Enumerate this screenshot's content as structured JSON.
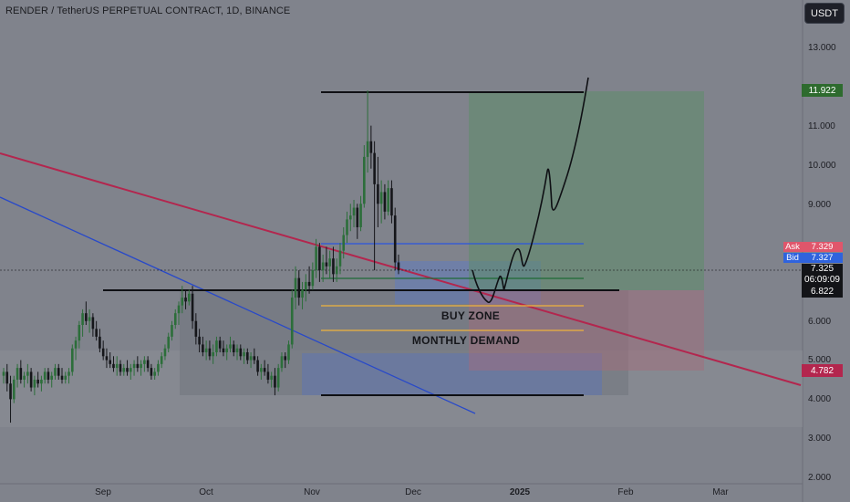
{
  "header": {
    "title": "RENDER / TetherUS PERPETUAL CONTRACT, 1D, BINANCE",
    "currency_button": "USDT"
  },
  "chart_data": {
    "type": "candlestick",
    "symbol": "RENDER / TetherUS PERPETUAL CONTRACT",
    "interval": "1D",
    "exchange": "BINANCE",
    "y_axis": {
      "ticks": [
        "13.000",
        "11.000",
        "10.000",
        "9.000",
        "6.000",
        "5.000",
        "4.000",
        "3.000",
        "2.000"
      ],
      "range": [
        2.0,
        13.5
      ]
    },
    "x_axis": {
      "ticks": [
        {
          "label": "Sep",
          "bold": false
        },
        {
          "label": "Oct",
          "bold": false
        },
        {
          "label": "Nov",
          "bold": false
        },
        {
          "label": "Dec",
          "bold": false
        },
        {
          "label": "2025",
          "bold": true
        },
        {
          "label": "Feb",
          "bold": false
        },
        {
          "label": "Mar",
          "bold": false
        }
      ]
    },
    "price_labels": {
      "target": {
        "value": "11.922",
        "color": "#2e6b2e"
      },
      "ask": {
        "label": "Ask",
        "value": "7.329",
        "color": "#e0566b"
      },
      "bid": {
        "label": "Bid",
        "value": "7.327",
        "color": "#2f63dd"
      },
      "last": {
        "value": "7.325",
        "countdown": "06:09:09"
      },
      "entry": {
        "value": "6.822"
      },
      "stop": {
        "value": "4.782",
        "color": "#b3264e"
      }
    },
    "annotations": [
      "BUY ZONE",
      "MONTHLY DEMAND"
    ],
    "series": [
      {
        "name": "",
        "points": [
          [
            4.6,
            4.8,
            4.4,
            4.7
          ],
          [
            4.7,
            4.9,
            4.2,
            4.4
          ],
          [
            4.4,
            4.6,
            3.4,
            4.0
          ],
          [
            4.0,
            4.6,
            3.9,
            4.5
          ],
          [
            4.5,
            4.9,
            4.3,
            4.8
          ],
          [
            4.8,
            5.0,
            4.4,
            4.5
          ],
          [
            4.5,
            4.7,
            4.3,
            4.6
          ],
          [
            4.6,
            4.9,
            4.4,
            4.7
          ],
          [
            4.7,
            4.8,
            4.2,
            4.3
          ],
          [
            4.3,
            4.6,
            4.1,
            4.5
          ],
          [
            4.5,
            4.7,
            4.3,
            4.4
          ],
          [
            4.4,
            4.6,
            4.2,
            4.5
          ],
          [
            4.5,
            4.8,
            4.4,
            4.7
          ],
          [
            4.7,
            4.8,
            4.4,
            4.5
          ],
          [
            4.5,
            4.7,
            4.3,
            4.6
          ],
          [
            4.6,
            4.9,
            4.5,
            4.8
          ],
          [
            4.8,
            4.9,
            4.5,
            4.6
          ],
          [
            4.6,
            4.8,
            4.4,
            4.5
          ],
          [
            4.5,
            4.7,
            4.4,
            4.6
          ],
          [
            4.6,
            4.8,
            4.4,
            4.7
          ],
          [
            4.7,
            5.4,
            4.6,
            5.3
          ],
          [
            5.3,
            5.6,
            5.0,
            5.5
          ],
          [
            5.5,
            6.0,
            5.3,
            5.9
          ],
          [
            5.9,
            6.3,
            5.6,
            6.2
          ],
          [
            6.2,
            6.5,
            5.9,
            6.0
          ],
          [
            6.0,
            6.3,
            5.7,
            6.1
          ],
          [
            6.1,
            6.2,
            5.6,
            5.8
          ],
          [
            5.8,
            6.0,
            5.5,
            5.6
          ],
          [
            5.6,
            5.8,
            5.2,
            5.3
          ],
          [
            5.3,
            5.5,
            5.0,
            5.1
          ],
          [
            5.1,
            5.3,
            4.8,
            5.0
          ],
          [
            5.0,
            5.2,
            4.8,
            4.9
          ],
          [
            4.9,
            5.1,
            4.7,
            4.8
          ],
          [
            4.8,
            5.1,
            4.6,
            4.9
          ],
          [
            4.9,
            5.0,
            4.6,
            4.7
          ],
          [
            4.7,
            4.9,
            4.6,
            4.8
          ],
          [
            4.8,
            5.0,
            4.6,
            4.7
          ],
          [
            4.7,
            4.9,
            4.5,
            4.8
          ],
          [
            4.8,
            5.0,
            4.6,
            4.9
          ],
          [
            4.9,
            5.1,
            4.7,
            4.8
          ],
          [
            4.8,
            5.0,
            4.6,
            4.9
          ],
          [
            4.9,
            5.1,
            4.7,
            5.0
          ],
          [
            5.0,
            5.1,
            4.7,
            4.8
          ],
          [
            4.8,
            4.9,
            4.5,
            4.6
          ],
          [
            4.6,
            4.8,
            4.5,
            4.7
          ],
          [
            4.7,
            5.0,
            4.6,
            4.9
          ],
          [
            4.9,
            5.2,
            4.8,
            5.1
          ],
          [
            5.1,
            5.4,
            5.0,
            5.3
          ],
          [
            5.3,
            5.7,
            5.2,
            5.6
          ],
          [
            5.6,
            6.0,
            5.5,
            5.9
          ],
          [
            5.9,
            6.3,
            5.8,
            6.2
          ],
          [
            6.2,
            6.5,
            5.9,
            6.4
          ],
          [
            6.4,
            6.9,
            6.2,
            6.6
          ],
          [
            6.6,
            6.8,
            6.3,
            6.5
          ],
          [
            6.5,
            6.8,
            6.4,
            6.7
          ],
          [
            6.7,
            6.9,
            5.8,
            6.0
          ],
          [
            6.0,
            6.2,
            5.4,
            5.6
          ],
          [
            5.6,
            5.8,
            5.2,
            5.4
          ],
          [
            5.4,
            5.6,
            5.1,
            5.2
          ],
          [
            5.2,
            5.5,
            5.0,
            5.3
          ],
          [
            5.3,
            5.5,
            5.0,
            5.1
          ],
          [
            5.1,
            5.4,
            4.9,
            5.2
          ],
          [
            5.2,
            5.6,
            5.1,
            5.5
          ],
          [
            5.5,
            5.6,
            5.2,
            5.3
          ],
          [
            5.3,
            5.5,
            5.1,
            5.2
          ],
          [
            5.2,
            5.4,
            5.0,
            5.3
          ],
          [
            5.3,
            5.6,
            5.2,
            5.4
          ],
          [
            5.4,
            5.5,
            5.1,
            5.2
          ],
          [
            5.2,
            5.4,
            5.0,
            5.3
          ],
          [
            5.3,
            5.4,
            5.0,
            5.1
          ],
          [
            5.1,
            5.3,
            4.9,
            5.2
          ],
          [
            5.2,
            5.3,
            4.9,
            5.0
          ],
          [
            5.0,
            5.2,
            4.8,
            5.1
          ],
          [
            5.1,
            5.3,
            4.9,
            5.0
          ],
          [
            5.0,
            5.1,
            4.6,
            4.7
          ],
          [
            4.7,
            4.9,
            4.5,
            4.8
          ],
          [
            4.8,
            5.0,
            4.6,
            4.7
          ],
          [
            4.7,
            4.9,
            4.4,
            4.5
          ],
          [
            4.5,
            4.7,
            4.3,
            4.6
          ],
          [
            4.6,
            4.8,
            4.1,
            4.3
          ],
          [
            4.3,
            4.9,
            4.2,
            4.8
          ],
          [
            4.8,
            5.2,
            4.7,
            5.1
          ],
          [
            5.1,
            5.2,
            4.8,
            5.0
          ],
          [
            5.0,
            5.5,
            4.9,
            5.4
          ],
          [
            5.4,
            6.8,
            5.3,
            6.6
          ],
          [
            6.6,
            7.4,
            6.3,
            7.1
          ],
          [
            7.1,
            7.3,
            6.4,
            6.6
          ],
          [
            6.6,
            7.0,
            6.3,
            6.8
          ],
          [
            6.8,
            7.2,
            6.5,
            7.0
          ],
          [
            7.0,
            7.4,
            6.7,
            6.9
          ],
          [
            6.9,
            7.5,
            6.8,
            7.3
          ],
          [
            7.3,
            8.1,
            7.1,
            7.9
          ],
          [
            7.9,
            8.0,
            7.0,
            7.3
          ],
          [
            7.3,
            7.7,
            7.0,
            7.5
          ],
          [
            7.5,
            7.9,
            7.2,
            7.4
          ],
          [
            7.4,
            7.8,
            7.1,
            7.6
          ],
          [
            7.6,
            7.9,
            7.0,
            7.2
          ],
          [
            7.2,
            7.6,
            7.0,
            7.4
          ],
          [
            7.4,
            8.0,
            7.2,
            7.8
          ],
          [
            7.8,
            8.4,
            7.6,
            8.2
          ],
          [
            8.2,
            8.8,
            8.0,
            8.6
          ],
          [
            8.6,
            9.0,
            8.3,
            8.7
          ],
          [
            8.7,
            9.1,
            8.4,
            8.9
          ],
          [
            8.9,
            9.0,
            8.1,
            8.4
          ],
          [
            8.4,
            9.2,
            8.3,
            9.0
          ],
          [
            9.0,
            10.5,
            8.9,
            10.2
          ],
          [
            10.2,
            11.9,
            9.8,
            10.6
          ],
          [
            10.6,
            11.0,
            9.9,
            10.3
          ],
          [
            10.3,
            10.6,
            7.3,
            9.5
          ],
          [
            9.5,
            10.2,
            8.4,
            9.0
          ],
          [
            9.0,
            9.6,
            8.5,
            9.3
          ],
          [
            9.3,
            9.5,
            8.6,
            8.8
          ],
          [
            8.8,
            9.6,
            8.7,
            9.4
          ],
          [
            9.4,
            9.6,
            8.5,
            8.7
          ],
          [
            8.7,
            8.9,
            7.3,
            7.5
          ],
          [
            7.5,
            7.7,
            7.2,
            7.3
          ]
        ]
      }
    ]
  }
}
